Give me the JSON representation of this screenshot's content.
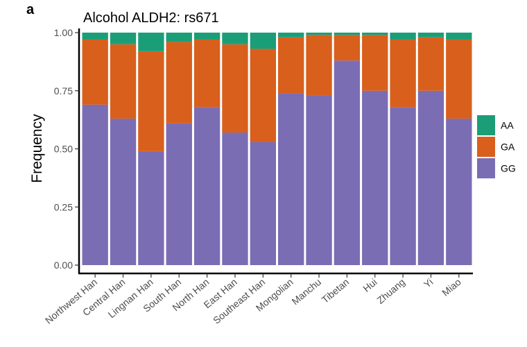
{
  "panel_label": "a",
  "chart_data": {
    "type": "bar",
    "stacked": true,
    "title": "Alcohol ALDH2: rs671",
    "xlabel": "",
    "ylabel": "Frequency",
    "ylim": [
      0,
      1
    ],
    "yticks": [
      "0.00",
      "0.25",
      "0.50",
      "0.75",
      "1.00"
    ],
    "grid": false,
    "legend_position": "right",
    "categories": [
      "Northwest Han",
      "Central Han",
      "Lingnan Han",
      "South Han",
      "North Han",
      "East Han",
      "Southeast Han",
      "Mongolian",
      "Manchu",
      "Tibetan",
      "Hui",
      "Zhuang",
      "Yi",
      "Miao"
    ],
    "series": [
      {
        "name": "GG",
        "color": "#7b6db4",
        "values": [
          0.69,
          0.63,
          0.49,
          0.61,
          0.68,
          0.57,
          0.53,
          0.74,
          0.73,
          0.88,
          0.75,
          0.68,
          0.75,
          0.63
        ]
      },
      {
        "name": "GA",
        "color": "#d95f1c",
        "values": [
          0.28,
          0.32,
          0.43,
          0.35,
          0.29,
          0.38,
          0.4,
          0.24,
          0.26,
          0.11,
          0.24,
          0.29,
          0.23,
          0.34
        ]
      },
      {
        "name": "AA",
        "color": "#1b9e77",
        "values": [
          0.03,
          0.05,
          0.08,
          0.04,
          0.03,
          0.05,
          0.07,
          0.02,
          0.01,
          0.01,
          0.01,
          0.03,
          0.02,
          0.03
        ]
      }
    ],
    "legend_order": [
      "AA",
      "GA",
      "GG"
    ]
  }
}
